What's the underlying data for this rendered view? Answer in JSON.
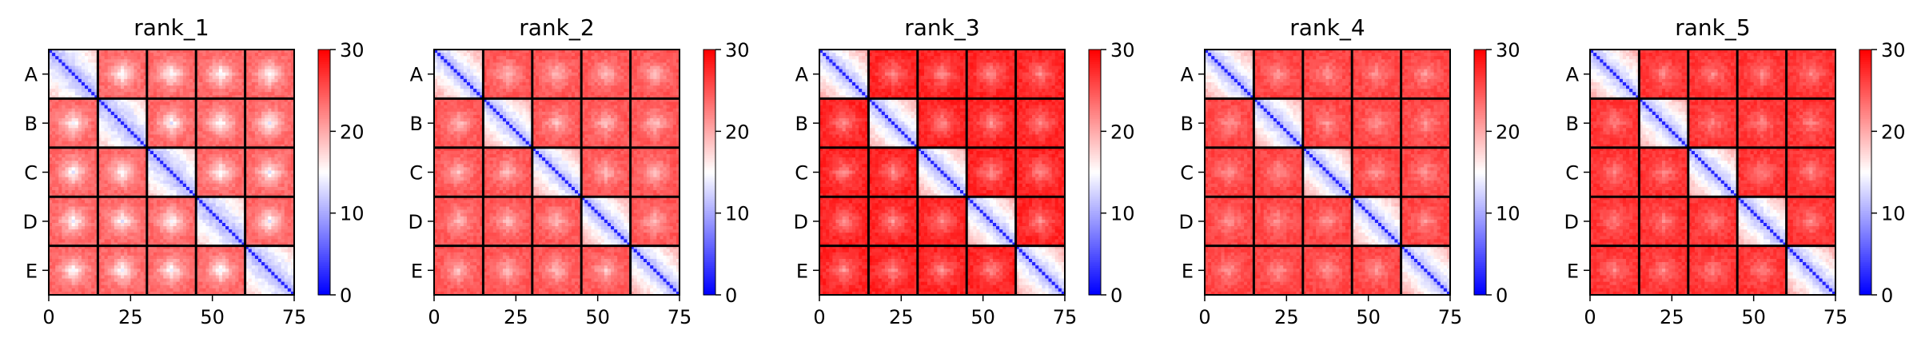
{
  "chart_data": [
    {
      "type": "heatmap",
      "title": "rank_1",
      "n": 75,
      "block_size": 15,
      "row_labels": [
        "A",
        "B",
        "C",
        "D",
        "E"
      ],
      "xticks": [
        0,
        25,
        50,
        75
      ],
      "clim": [
        0,
        30
      ],
      "colorbar_ticks": [
        0,
        10,
        20,
        30
      ],
      "colormap": "bwr",
      "diagonal_value": 2,
      "within_block_offdiag": [
        10,
        18
      ],
      "between_block": [
        12,
        24
      ]
    },
    {
      "type": "heatmap",
      "title": "rank_2",
      "n": 75,
      "block_size": 15,
      "row_labels": [
        "A",
        "B",
        "C",
        "D",
        "E"
      ],
      "xticks": [
        0,
        25,
        50,
        75
      ],
      "clim": [
        0,
        30
      ],
      "colorbar_ticks": [
        0,
        10,
        20,
        30
      ],
      "colormap": "bwr",
      "diagonal_value": 2,
      "within_block_offdiag": [
        10,
        20
      ],
      "between_block": [
        17,
        25
      ]
    },
    {
      "type": "heatmap",
      "title": "rank_3",
      "n": 75,
      "block_size": 15,
      "row_labels": [
        "A",
        "B",
        "C",
        "D",
        "E"
      ],
      "xticks": [
        0,
        25,
        50,
        75
      ],
      "clim": [
        0,
        30
      ],
      "colorbar_ticks": [
        0,
        10,
        20,
        30
      ],
      "colormap": "bwr",
      "diagonal_value": 2,
      "within_block_offdiag": [
        10,
        20
      ],
      "between_block": [
        20,
        28
      ]
    },
    {
      "type": "heatmap",
      "title": "rank_4",
      "n": 75,
      "block_size": 15,
      "row_labels": [
        "A",
        "B",
        "C",
        "D",
        "E"
      ],
      "xticks": [
        0,
        25,
        50,
        75
      ],
      "clim": [
        0,
        30
      ],
      "colorbar_ticks": [
        0,
        10,
        20,
        30
      ],
      "colormap": "bwr",
      "diagonal_value": 2,
      "within_block_offdiag": [
        10,
        20
      ],
      "between_block": [
        20,
        26
      ]
    },
    {
      "type": "heatmap",
      "title": "rank_5",
      "n": 75,
      "block_size": 15,
      "row_labels": [
        "A",
        "B",
        "C",
        "D",
        "E"
      ],
      "xticks": [
        0,
        25,
        50,
        75
      ],
      "clim": [
        0,
        30
      ],
      "colorbar_ticks": [
        0,
        10,
        20,
        30
      ],
      "colormap": "bwr",
      "diagonal_value": 2,
      "within_block_offdiag": [
        10,
        20
      ],
      "between_block": [
        21,
        27
      ]
    }
  ]
}
